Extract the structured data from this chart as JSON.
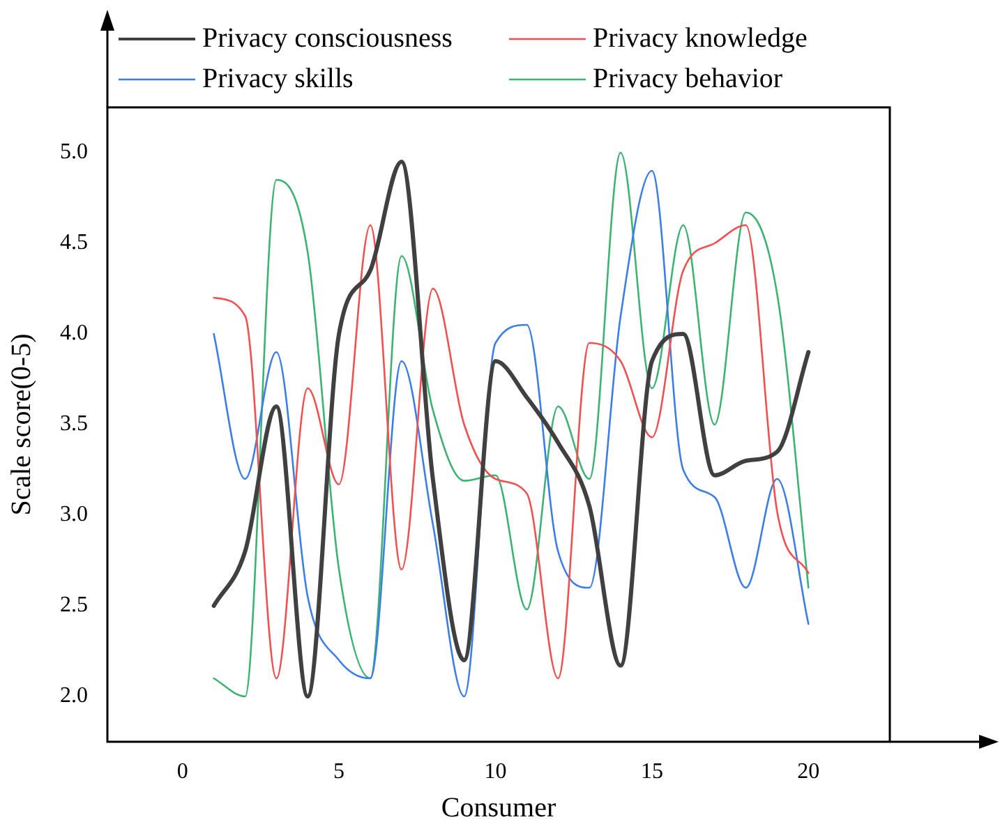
{
  "chart_data": {
    "type": "line",
    "xlabel": "Consumer",
    "ylabel": "Scale score(0-5)",
    "x": [
      1,
      2,
      3,
      4,
      5,
      6,
      7,
      8,
      9,
      10,
      11,
      12,
      13,
      14,
      15,
      16,
      17,
      18,
      19,
      20
    ],
    "series": [
      {
        "name": "Privacy consciousness",
        "color": "#404040",
        "values": [
          2.5,
          2.8,
          3.6,
          2.0,
          4.0,
          4.35,
          4.95,
          3.2,
          2.2,
          3.85,
          3.65,
          3.4,
          3.05,
          2.17,
          3.85,
          4.0,
          3.22,
          3.3,
          3.35,
          3.9
        ]
      },
      {
        "name": "Privacy knowledge",
        "color": "#f05050",
        "values": [
          4.2,
          4.1,
          2.1,
          3.7,
          3.17,
          4.6,
          2.7,
          4.25,
          3.5,
          3.2,
          3.12,
          2.1,
          3.95,
          3.85,
          3.43,
          4.35,
          4.5,
          4.6,
          3.02,
          2.68
        ]
      },
      {
        "name": "Privacy skills",
        "color": "#3c7ee6",
        "values": [
          4.0,
          3.2,
          3.9,
          2.55,
          2.2,
          2.1,
          3.85,
          2.95,
          2.0,
          3.95,
          4.05,
          2.8,
          2.6,
          4.1,
          4.9,
          3.25,
          3.1,
          2.6,
          3.2,
          2.4
        ]
      },
      {
        "name": "Privacy behavior",
        "color": "#3cb371",
        "values": [
          2.1,
          2.0,
          4.85,
          4.45,
          2.7,
          2.1,
          4.43,
          3.58,
          3.19,
          3.22,
          2.48,
          3.6,
          3.2,
          5.0,
          3.7,
          4.6,
          3.5,
          4.67,
          4.22,
          2.6
        ]
      }
    ],
    "xlim": [
      -2.4,
      22.6
    ],
    "xticks": [
      0,
      5,
      10,
      15,
      20
    ],
    "ylim": [
      1.75,
      5.25
    ],
    "yticks": [
      {
        "value": 2,
        "label": "2.0"
      },
      {
        "value": 2.5,
        "label": "2.5"
      },
      {
        "value": 3,
        "label": "3.0"
      },
      {
        "value": 3.5,
        "label": "3.5"
      },
      {
        "value": 4,
        "label": "4.0"
      },
      {
        "value": 4.5,
        "label": "4.5"
      },
      {
        "value": 5,
        "label": "5.0"
      }
    ],
    "grid": false,
    "legend": "top",
    "marker": "none",
    "line_style": "solid"
  }
}
